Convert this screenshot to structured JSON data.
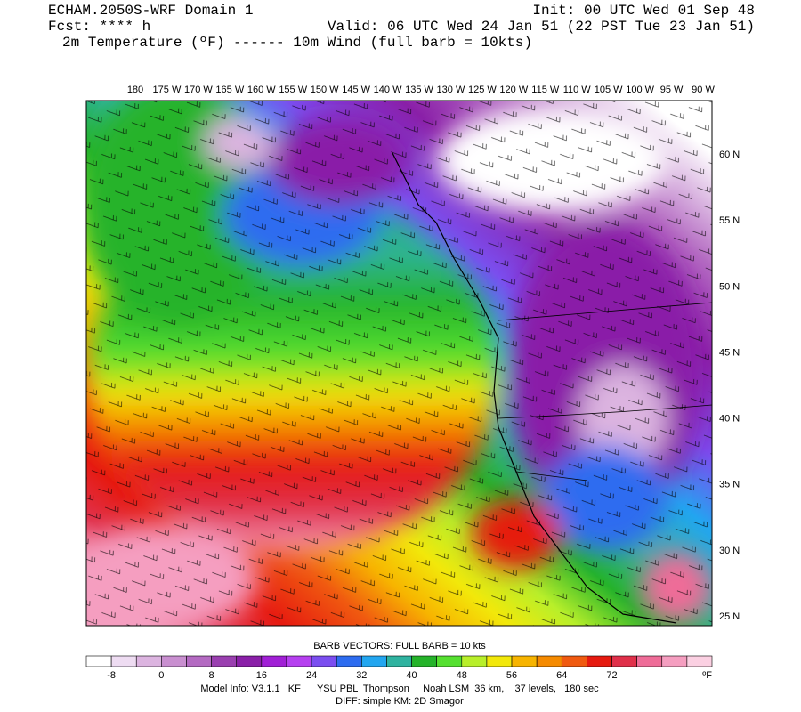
{
  "header": {
    "left": [
      "ECHAM.2050S-WRF Domain 1",
      "Fcst: **** h",
      "2m Temperature (ºF) ------ 10m Wind (full barb = 10kts)"
    ],
    "right": [
      "Init: 00 UTC Wed 01 Sep 48",
      "Valid: 06 UTC Wed 24 Jan 51 (22 PST Tue 23 Jan 51)"
    ]
  },
  "map": {
    "lon_labels": [
      "180",
      "175 W",
      "170 W",
      "165 W",
      "160 W",
      "155 W",
      "150 W",
      "145 W",
      "140 W",
      "135 W",
      "130 W",
      "125 W",
      "120 W",
      "115 W",
      "110 W",
      "105 W",
      "100 W",
      "95 W",
      "90 W"
    ],
    "lat_labels": [
      "60 N",
      "55 N",
      "50 N",
      "45 N",
      "40 N",
      "35 N",
      "30 N",
      "25 N"
    ]
  },
  "legend": {
    "barb_note": "BARB VECTORS:  FULL BARB = 10 kts",
    "colors": [
      "#ffffff",
      "#eedcf2",
      "#dcb4e0",
      "#c98fd0",
      "#b46ac2",
      "#9a3fb0",
      "#8a1fa8",
      "#a11fd6",
      "#b640f0",
      "#7b4ef0",
      "#2d6cf0",
      "#22a6f0",
      "#2fb3a0",
      "#25b32a",
      "#55e030",
      "#b8ef2a",
      "#f2e80a",
      "#f7b400",
      "#f58a00",
      "#f05a10",
      "#e61a10",
      "#e0304a",
      "#ef6c98",
      "#f59ec0",
      "#fbd0e2"
    ],
    "labels": [
      "-8",
      "0",
      "8",
      "16",
      "24",
      "32",
      "40",
      "48",
      "56",
      "64",
      "72"
    ],
    "unit": "ºF"
  },
  "footer": [
    "Model Info: V3.1.1   KF      YSU PBL  Thompson     Noah LSM  36 km,    37 levels,   180 sec",
    "DIFF: simple KM: 2D Smagor"
  ]
}
